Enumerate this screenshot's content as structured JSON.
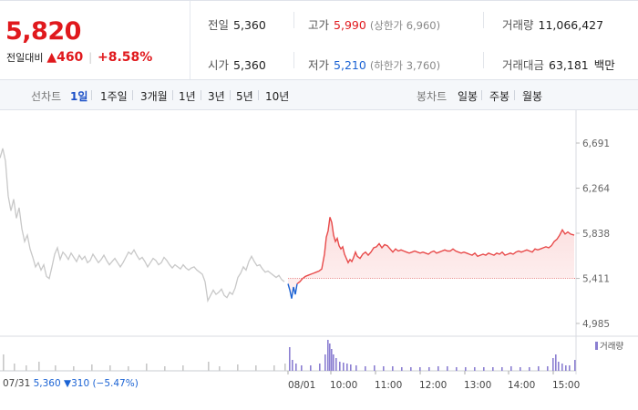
{
  "quote": {
    "current_price": "5,820",
    "change_label": "전일대비",
    "change_amount": "▲460",
    "change_percent": "+8.58%",
    "stats": {
      "prev_close_label": "전일",
      "prev_close": "5,360",
      "open_label": "시가",
      "open": "5,360",
      "high_label": "고가",
      "high": "5,990",
      "upper_limit": "(상한가 6,960)",
      "low_label": "저가",
      "low": "5,210",
      "lower_limit": "(하한가 3,760)",
      "volume_label": "거래량",
      "volume": "11,066,427",
      "amount_label": "거래대금",
      "amount": "63,181",
      "amount_unit": "백만"
    },
    "colors": {
      "up": "#e0191d",
      "down": "#1b63d4"
    }
  },
  "toolbar": {
    "line_label": "선차트",
    "line_periods": [
      "1일",
      "1주일",
      "3개월",
      "1년",
      "3년",
      "5년",
      "10년"
    ],
    "active_period": "1일",
    "candle_label": "봉차트",
    "candle_periods": [
      "일봉",
      "주봉",
      "월봉"
    ]
  },
  "footer": {
    "prev_date": "07/31",
    "prev_info": "5,360 ▼310 (−5.47%)",
    "volume_legend": "거래량"
  },
  "chart_data": {
    "type": "line",
    "title": "",
    "xlabel": "",
    "ylabel": "",
    "y_ticks": [
      "6,691",
      "6,264",
      "5,838",
      "5,411",
      "4,985"
    ],
    "ylim": [
      4985,
      6691
    ],
    "baseline": 5411,
    "x_ticks": [
      "07/31",
      "08/01",
      "10:00",
      "11:00",
      "12:00",
      "13:00",
      "14:00",
      "15:00"
    ],
    "series": [
      {
        "color": "#c8c8c8",
        "day": "07/31",
        "points": [
          [
            0,
            6550
          ],
          [
            3,
            6640
          ],
          [
            6,
            6520
          ],
          [
            9,
            6190
          ],
          [
            12,
            6050
          ],
          [
            15,
            6160
          ],
          [
            18,
            5980
          ],
          [
            21,
            6080
          ],
          [
            24,
            5880
          ],
          [
            27,
            5760
          ],
          [
            30,
            5820
          ],
          [
            33,
            5690
          ],
          [
            36,
            5610
          ],
          [
            39,
            5520
          ],
          [
            42,
            5560
          ],
          [
            45,
            5490
          ],
          [
            48,
            5540
          ],
          [
            51,
            5430
          ],
          [
            54,
            5410
          ],
          [
            57,
            5520
          ],
          [
            60,
            5640
          ],
          [
            63,
            5700
          ],
          [
            66,
            5590
          ],
          [
            69,
            5660
          ],
          [
            72,
            5630
          ],
          [
            75,
            5590
          ],
          [
            78,
            5650
          ],
          [
            81,
            5610
          ],
          [
            84,
            5570
          ],
          [
            87,
            5630
          ],
          [
            90,
            5590
          ],
          [
            93,
            5620
          ],
          [
            96,
            5560
          ],
          [
            99,
            5580
          ],
          [
            102,
            5640
          ],
          [
            105,
            5600
          ],
          [
            108,
            5560
          ],
          [
            111,
            5590
          ],
          [
            114,
            5630
          ],
          [
            117,
            5580
          ],
          [
            120,
            5540
          ],
          [
            123,
            5570
          ],
          [
            126,
            5600
          ],
          [
            129,
            5560
          ],
          [
            132,
            5520
          ],
          [
            135,
            5560
          ],
          [
            138,
            5610
          ],
          [
            141,
            5660
          ],
          [
            144,
            5640
          ],
          [
            147,
            5680
          ],
          [
            150,
            5630
          ],
          [
            153,
            5590
          ],
          [
            156,
            5610
          ],
          [
            159,
            5570
          ],
          [
            162,
            5520
          ],
          [
            165,
            5560
          ],
          [
            168,
            5600
          ],
          [
            171,
            5580
          ],
          [
            174,
            5540
          ],
          [
            177,
            5560
          ],
          [
            180,
            5610
          ],
          [
            183,
            5580
          ],
          [
            186,
            5540
          ],
          [
            189,
            5510
          ],
          [
            192,
            5540
          ],
          [
            195,
            5520
          ],
          [
            198,
            5500
          ],
          [
            201,
            5540
          ],
          [
            204,
            5510
          ],
          [
            207,
            5490
          ],
          [
            210,
            5510
          ],
          [
            213,
            5520
          ],
          [
            216,
            5490
          ],
          [
            219,
            5470
          ],
          [
            222,
            5450
          ],
          [
            225,
            5380
          ],
          [
            228,
            5200
          ],
          [
            231,
            5250
          ],
          [
            234,
            5300
          ],
          [
            237,
            5260
          ],
          [
            240,
            5280
          ],
          [
            243,
            5310
          ],
          [
            246,
            5250
          ],
          [
            249,
            5230
          ],
          [
            252,
            5280
          ],
          [
            255,
            5260
          ],
          [
            258,
            5320
          ],
          [
            261,
            5420
          ],
          [
            264,
            5460
          ],
          [
            267,
            5520
          ],
          [
            270,
            5490
          ],
          [
            273,
            5570
          ],
          [
            276,
            5620
          ],
          [
            279,
            5570
          ],
          [
            282,
            5530
          ],
          [
            285,
            5540
          ],
          [
            288,
            5500
          ],
          [
            291,
            5470
          ],
          [
            294,
            5480
          ],
          [
            297,
            5460
          ],
          [
            300,
            5440
          ],
          [
            303,
            5420
          ],
          [
            306,
            5440
          ],
          [
            309,
            5400
          ],
          [
            312,
            5380
          ]
        ]
      },
      {
        "color": "#e84a4a",
        "day": "08/01",
        "points": [
          [
            316,
            5360
          ],
          [
            318,
            5300
          ],
          [
            320,
            5220
          ],
          [
            322,
            5330
          ],
          [
            324,
            5260
          ],
          [
            326,
            5360
          ],
          [
            329,
            5380
          ],
          [
            332,
            5410
          ],
          [
            335,
            5430
          ],
          [
            338,
            5440
          ],
          [
            341,
            5450
          ],
          [
            344,
            5460
          ],
          [
            347,
            5470
          ],
          [
            350,
            5480
          ],
          [
            353,
            5500
          ],
          [
            356,
            5640
          ],
          [
            358,
            5800
          ],
          [
            360,
            5860
          ],
          [
            362,
            5990
          ],
          [
            364,
            5940
          ],
          [
            366,
            5820
          ],
          [
            368,
            5760
          ],
          [
            370,
            5790
          ],
          [
            372,
            5720
          ],
          [
            374,
            5690
          ],
          [
            376,
            5710
          ],
          [
            378,
            5640
          ],
          [
            380,
            5600
          ],
          [
            382,
            5560
          ],
          [
            384,
            5590
          ],
          [
            386,
            5570
          ],
          [
            388,
            5610
          ],
          [
            390,
            5660
          ],
          [
            392,
            5620
          ],
          [
            395,
            5600
          ],
          [
            398,
            5640
          ],
          [
            401,
            5660
          ],
          [
            404,
            5630
          ],
          [
            407,
            5660
          ],
          [
            410,
            5700
          ],
          [
            413,
            5710
          ],
          [
            416,
            5740
          ],
          [
            419,
            5700
          ],
          [
            422,
            5730
          ],
          [
            425,
            5720
          ],
          [
            428,
            5690
          ],
          [
            431,
            5660
          ],
          [
            434,
            5690
          ],
          [
            437,
            5670
          ],
          [
            440,
            5680
          ],
          [
            443,
            5670
          ],
          [
            446,
            5660
          ],
          [
            449,
            5650
          ],
          [
            452,
            5660
          ],
          [
            455,
            5670
          ],
          [
            458,
            5660
          ],
          [
            461,
            5650
          ],
          [
            464,
            5660
          ],
          [
            467,
            5650
          ],
          [
            470,
            5640
          ],
          [
            473,
            5660
          ],
          [
            476,
            5670
          ],
          [
            479,
            5650
          ],
          [
            482,
            5660
          ],
          [
            485,
            5670
          ],
          [
            488,
            5680
          ],
          [
            491,
            5670
          ],
          [
            494,
            5670
          ],
          [
            497,
            5690
          ],
          [
            500,
            5670
          ],
          [
            503,
            5660
          ],
          [
            506,
            5650
          ],
          [
            509,
            5660
          ],
          [
            512,
            5650
          ],
          [
            515,
            5640
          ],
          [
            518,
            5630
          ],
          [
            521,
            5650
          ],
          [
            524,
            5620
          ],
          [
            527,
            5630
          ],
          [
            530,
            5640
          ],
          [
            533,
            5630
          ],
          [
            536,
            5650
          ],
          [
            539,
            5640
          ],
          [
            542,
            5630
          ],
          [
            545,
            5650
          ],
          [
            548,
            5640
          ],
          [
            551,
            5660
          ],
          [
            554,
            5630
          ],
          [
            557,
            5640
          ],
          [
            560,
            5650
          ],
          [
            563,
            5640
          ],
          [
            566,
            5660
          ],
          [
            569,
            5670
          ],
          [
            572,
            5660
          ],
          [
            575,
            5670
          ],
          [
            578,
            5680
          ],
          [
            581,
            5670
          ],
          [
            584,
            5660
          ],
          [
            587,
            5690
          ],
          [
            590,
            5680
          ],
          [
            593,
            5690
          ],
          [
            596,
            5700
          ],
          [
            599,
            5710
          ],
          [
            602,
            5700
          ],
          [
            605,
            5720
          ],
          [
            608,
            5760
          ],
          [
            611,
            5780
          ],
          [
            614,
            5820
          ],
          [
            617,
            5870
          ],
          [
            620,
            5830
          ],
          [
            623,
            5850
          ],
          [
            626,
            5830
          ],
          [
            630,
            5820
          ]
        ]
      }
    ],
    "volume": {
      "name": "거래량",
      "color_prev": "#c8c8c8",
      "color_today": "#8b7fd1",
      "bars": [
        [
          3,
          18
        ],
        [
          15,
          8
        ],
        [
          28,
          6
        ],
        [
          42,
          10
        ],
        [
          60,
          6
        ],
        [
          80,
          5
        ],
        [
          100,
          7
        ],
        [
          120,
          6
        ],
        [
          140,
          5
        ],
        [
          160,
          8
        ],
        [
          180,
          5
        ],
        [
          200,
          6
        ],
        [
          228,
          10
        ],
        [
          240,
          5
        ],
        [
          260,
          7
        ],
        [
          280,
          6
        ],
        [
          300,
          6
        ],
        [
          312,
          8
        ],
        [
          317,
          26
        ],
        [
          320,
          12
        ],
        [
          324,
          8
        ],
        [
          330,
          6
        ],
        [
          340,
          6
        ],
        [
          350,
          8
        ],
        [
          356,
          18
        ],
        [
          359,
          34
        ],
        [
          361,
          30
        ],
        [
          363,
          24
        ],
        [
          365,
          18
        ],
        [
          368,
          14
        ],
        [
          372,
          10
        ],
        [
          376,
          9
        ],
        [
          380,
          8
        ],
        [
          384,
          7
        ],
        [
          390,
          6
        ],
        [
          400,
          5
        ],
        [
          410,
          6
        ],
        [
          420,
          5
        ],
        [
          430,
          5
        ],
        [
          440,
          4
        ],
        [
          450,
          4
        ],
        [
          460,
          4
        ],
        [
          470,
          4
        ],
        [
          480,
          5
        ],
        [
          490,
          5
        ],
        [
          500,
          4
        ],
        [
          510,
          4
        ],
        [
          520,
          4
        ],
        [
          530,
          4
        ],
        [
          540,
          4
        ],
        [
          550,
          4
        ],
        [
          560,
          5
        ],
        [
          570,
          4
        ],
        [
          580,
          4
        ],
        [
          590,
          5
        ],
        [
          600,
          5
        ],
        [
          606,
          14
        ],
        [
          609,
          18
        ],
        [
          612,
          10
        ],
        [
          616,
          8
        ],
        [
          620,
          6
        ],
        [
          624,
          6
        ],
        [
          630,
          12
        ]
      ]
    }
  }
}
